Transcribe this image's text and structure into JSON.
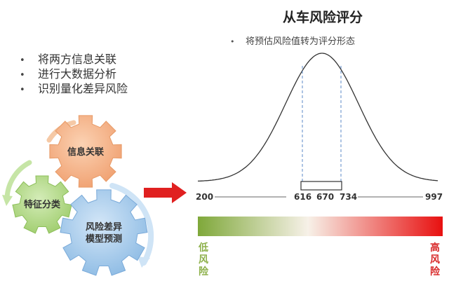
{
  "bullets": [
    "将两方信息关联",
    "进行大数据分析",
    "识别量化差异风险"
  ],
  "gears": {
    "info": "信息关联",
    "feature": "特征分类",
    "risk_line1": "风险差异",
    "risk_line2": "模型预测"
  },
  "title": "从车风险评分",
  "subtitle": "将预估风险值转为评分形态",
  "score_axis": {
    "min": "200",
    "lower": "616",
    "mean": "670",
    "upper": "734",
    "max": "997"
  },
  "gradient": {
    "low_label": "低风险",
    "high_label": "高风险",
    "start_color": "#7fa83a",
    "mid_color": "#f7f1e8",
    "end_color": "#e81010"
  },
  "colors": {
    "gear_info": "#f4b183",
    "gear_feature": "#b5d98a",
    "gear_risk": "#9dc3e6",
    "arrow": "#e02020",
    "dashed": "#5b8ac7"
  }
}
